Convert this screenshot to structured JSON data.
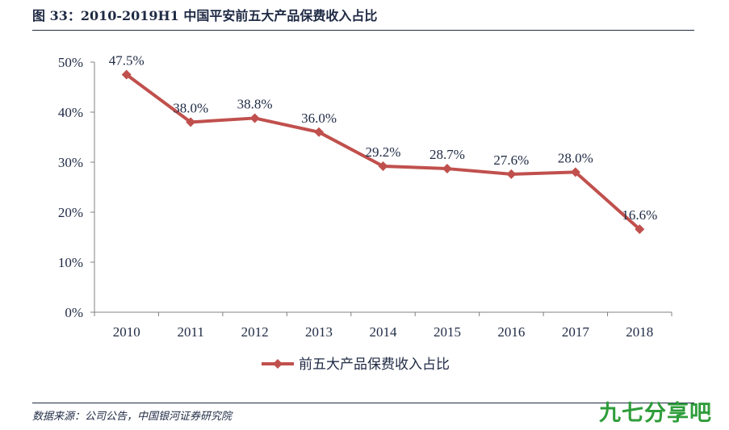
{
  "figure": {
    "title": "图 33：2010-2019H1 中国平安前五大产品保费收入占比",
    "source": "数据来源：公司公告，中国银河证券研究院",
    "watermark": "九七分享吧"
  },
  "colors": {
    "series": "#c0504d",
    "text": "#1f2a44",
    "axis": "#808080",
    "watermark": "#2e9d3a"
  },
  "chart_data": {
    "type": "line",
    "x": [
      "2010",
      "2011",
      "2012",
      "2013",
      "2014",
      "2015",
      "2016",
      "2017",
      "2018"
    ],
    "series": [
      {
        "name": "前五大产品保费收入占比",
        "values": [
          47.5,
          38.0,
          38.8,
          36.0,
          29.2,
          28.7,
          27.6,
          28.0,
          16.6
        ],
        "labels": [
          "47.5%",
          "38.0%",
          "38.8%",
          "36.0%",
          "29.2%",
          "28.7%",
          "27.6%",
          "28.0%",
          "16.6%"
        ],
        "marker": "diamond"
      }
    ],
    "y_ticks": [
      "0%",
      "10%",
      "20%",
      "30%",
      "40%",
      "50%"
    ],
    "ylim": [
      0,
      50
    ],
    "grid": false,
    "legend_position": "bottom-center"
  }
}
